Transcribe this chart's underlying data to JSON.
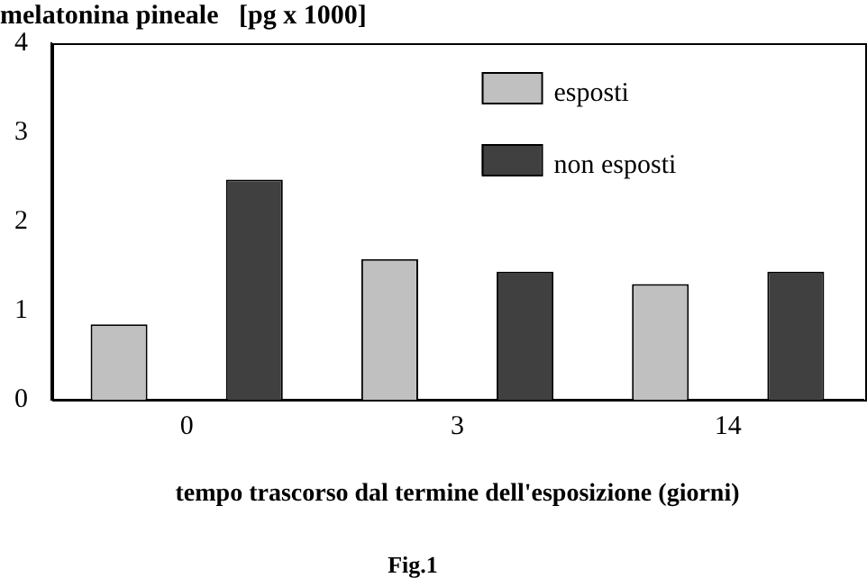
{
  "chart_data": {
    "type": "bar",
    "title": "melatonina pineale   [pg x 1000]",
    "xlabel": "tempo trascorso dal termine dell'esposizione (giorni)",
    "annotations": [
      "Fig.1"
    ],
    "categories": [
      "0",
      "3",
      "14"
    ],
    "series": [
      {
        "name": "esposti",
        "color": "#c0c0c0",
        "values": [
          0.85,
          1.58,
          1.3
        ]
      },
      {
        "name": "non esposti",
        "color": "#404040",
        "values": [
          2.47,
          1.44,
          1.44
        ]
      }
    ],
    "ylim": [
      0,
      4
    ],
    "yticks": [
      0,
      1,
      2,
      3,
      4
    ],
    "grid": false,
    "legend": "top right"
  }
}
